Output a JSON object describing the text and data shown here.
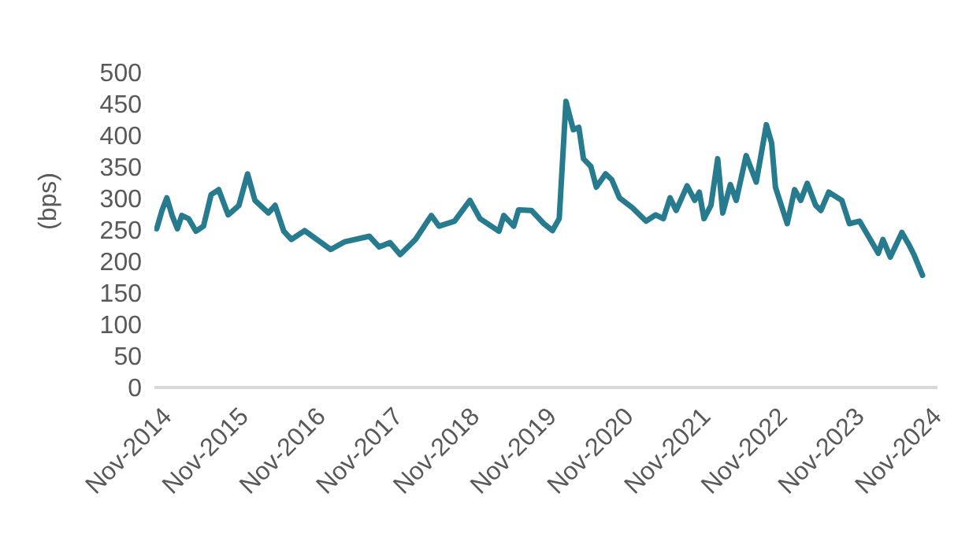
{
  "chart_data": {
    "type": "line",
    "ylabel": "(bps)",
    "x": [
      "2014-09-10",
      "2014-10-05",
      "2014-10-28",
      "2014-11-22",
      "2014-12-17",
      "2015-01-07",
      "2015-02-08",
      "2015-03-15",
      "2015-04-20",
      "2015-05-26",
      "2015-07-01",
      "2015-08-15",
      "2015-10-05",
      "2015-11-15",
      "2015-12-20",
      "2016-02-22",
      "2016-03-25",
      "2016-05-05",
      "2016-06-10",
      "2016-08-12",
      "2016-12-14",
      "2017-02-16",
      "2017-06-15",
      "2017-08-01",
      "2017-09-21",
      "2017-11-08",
      "2018-01-20",
      "2018-04-05",
      "2018-05-12",
      "2018-07-24",
      "2018-10-05",
      "2018-11-22",
      "2019-02-20",
      "2019-03-15",
      "2019-05-01",
      "2019-05-24",
      "2019-07-24",
      "2019-09-21",
      "2019-11-01",
      "2019-12-03",
      "2020-01-04",
      "2020-02-08",
      "2020-03-05",
      "2020-03-27",
      "2020-05-01",
      "2020-05-27",
      "2020-07-10",
      "2020-08-08",
      "2020-09-14",
      "2020-11-15",
      "2021-01-18",
      "2021-03-05",
      "2021-04-10",
      "2021-05-12",
      "2021-06-10",
      "2021-08-01",
      "2021-09-06",
      "2021-09-28",
      "2021-10-20",
      "2021-11-22",
      "2021-12-24",
      "2022-01-17",
      "2022-02-22",
      "2022-03-22",
      "2022-05-08",
      "2022-06-25",
      "2022-08-12",
      "2022-09-06",
      "2022-09-24",
      "2022-11-19",
      "2022-12-24",
      "2023-01-22",
      "2023-02-22",
      "2023-04-03",
      "2023-04-28",
      "2023-06-04",
      "2023-08-05",
      "2023-09-10",
      "2023-10-28",
      "2023-12-18",
      "2024-01-25",
      "2024-02-16",
      "2024-03-22",
      "2024-05-16",
      "2024-06-18",
      "2024-07-12",
      "2024-08-22"
    ],
    "series": [
      {
        "color": "#267b8e",
        "values": [
          252,
          281,
          301,
          273,
          252,
          273,
          268,
          248,
          256,
          306,
          314,
          274,
          289,
          339,
          297,
          277,
          289,
          248,
          235,
          249,
          219,
          231,
          240,
          223,
          230,
          211,
          235,
          273,
          256,
          264,
          297,
          268,
          248,
          273,
          256,
          282,
          281,
          260,
          249,
          268,
          454,
          409,
          413,
          363,
          351,
          318,
          339,
          330,
          301,
          285,
          264,
          274,
          268,
          301,
          281,
          320,
          297,
          310,
          268,
          289,
          363,
          277,
          322,
          297,
          368,
          326,
          417,
          388,
          318,
          260,
          314,
          297,
          324,
          289,
          281,
          310,
          297,
          260,
          264,
          235,
          213,
          235,
          207,
          246,
          227,
          211,
          178
        ]
      }
    ],
    "xlim": [
      "2014-08-30",
      "2024-11-01"
    ],
    "xticks": [
      {
        "value": "2014-11-01",
        "label": "Nov-2014"
      },
      {
        "value": "2015-11-01",
        "label": "Nov-2015"
      },
      {
        "value": "2016-11-01",
        "label": "Nov-2016"
      },
      {
        "value": "2017-11-01",
        "label": "Nov-2017"
      },
      {
        "value": "2018-11-01",
        "label": "Nov-2018"
      },
      {
        "value": "2019-11-01",
        "label": "Nov-2019"
      },
      {
        "value": "2020-11-01",
        "label": "Nov-2020"
      },
      {
        "value": "2021-11-01",
        "label": "Nov-2021"
      },
      {
        "value": "2022-11-01",
        "label": "Nov-2022"
      },
      {
        "value": "2023-11-01",
        "label": "Nov-2023"
      },
      {
        "value": "2024-11-01",
        "label": "Nov-2024"
      }
    ],
    "ylim": [
      0,
      500
    ],
    "yticks": [
      0,
      50,
      100,
      150,
      200,
      250,
      300,
      350,
      400,
      450,
      500
    ],
    "grid": false,
    "legend": false,
    "marker": "none",
    "line_style": "solid"
  }
}
